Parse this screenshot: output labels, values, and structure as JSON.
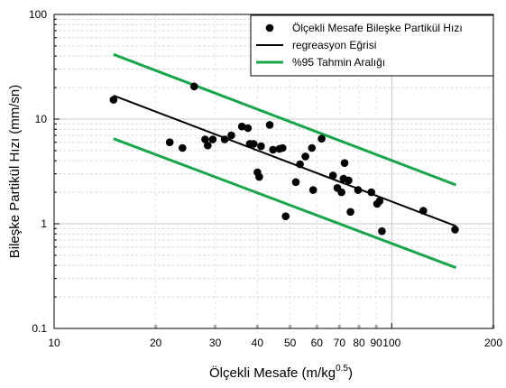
{
  "chart_data": {
    "type": "scatter",
    "title": "",
    "xlabel": "Ölçekli Mesafe (m/kg",
    "xlabel_sup": "0.5",
    "xlabel_end": ")",
    "ylabel": "Bileşke Partikül Hızı (mm/sn)",
    "xscale": "log",
    "yscale": "log",
    "xlim": [
      10,
      200
    ],
    "ylim": [
      0.1,
      100
    ],
    "grid": true,
    "x_tick_labels": [
      {
        "value": 10,
        "label": "10"
      },
      {
        "value": 20,
        "label": "20"
      },
      {
        "value": 30,
        "label": "30"
      },
      {
        "value": 40,
        "label": "40"
      },
      {
        "value": 50,
        "label": "50"
      },
      {
        "value": 60,
        "label": "60"
      },
      {
        "value": 70,
        "label": "70"
      },
      {
        "value": 80,
        "label": "80"
      },
      {
        "value": 90,
        "label": "90"
      },
      {
        "value": 100,
        "label": "100"
      },
      {
        "value": 200,
        "label": "200"
      }
    ],
    "y_tick_labels": [
      {
        "value": 0.1,
        "label": "0.1"
      },
      {
        "value": 1,
        "label": "1"
      },
      {
        "value": 10,
        "label": "10"
      },
      {
        "value": 100,
        "label": "100"
      }
    ],
    "legend_position": "top-right",
    "series": [
      {
        "name": "Ölçekli Mesafe Bileşke Partikül Hızı",
        "kind": "scatter",
        "color": "#000000",
        "points": [
          [
            15,
            15.3
          ],
          [
            22,
            6.0
          ],
          [
            24,
            5.3
          ],
          [
            26,
            20.5
          ],
          [
            28,
            6.4
          ],
          [
            28.5,
            5.6
          ],
          [
            29.5,
            6.4
          ],
          [
            32,
            6.4
          ],
          [
            33.5,
            7.0
          ],
          [
            36,
            8.5
          ],
          [
            37.5,
            8.2
          ],
          [
            38,
            5.8
          ],
          [
            39,
            5.8
          ],
          [
            40,
            3.1
          ],
          [
            40.5,
            2.8
          ],
          [
            41,
            5.5
          ],
          [
            43.5,
            8.8
          ],
          [
            44.5,
            5.1
          ],
          [
            46.5,
            5.2
          ],
          [
            47.5,
            5.3
          ],
          [
            48.5,
            1.18
          ],
          [
            52,
            2.5
          ],
          [
            53.5,
            3.7
          ],
          [
            55.5,
            4.4
          ],
          [
            58,
            5.3
          ],
          [
            58.5,
            2.1
          ],
          [
            62,
            6.5
          ],
          [
            67,
            2.9
          ],
          [
            69,
            2.2
          ],
          [
            71,
            2.0
          ],
          [
            72,
            2.7
          ],
          [
            72.5,
            3.8
          ],
          [
            74.5,
            2.6
          ],
          [
            75.5,
            1.3
          ],
          [
            79.5,
            2.1
          ],
          [
            87,
            2.0
          ],
          [
            90.5,
            1.55
          ],
          [
            92,
            1.65
          ],
          [
            93.5,
            0.85
          ],
          [
            124,
            1.33
          ],
          [
            154,
            0.88
          ]
        ]
      },
      {
        "name": "regreasyon Eğrisi",
        "kind": "line",
        "color": "#000000",
        "points": [
          [
            15,
            16.8
          ],
          [
            155,
            0.95
          ]
        ]
      },
      {
        "name": "%95 Tahmin Aralığı",
        "kind": "line",
        "color": "#1aa54b",
        "points": [
          [
            15,
            41.5
          ],
          [
            155,
            2.35
          ]
        ]
      },
      {
        "name": "",
        "kind": "line",
        "color": "#1aa54b",
        "points": [
          [
            15,
            6.5
          ],
          [
            155,
            0.38
          ]
        ]
      }
    ]
  }
}
